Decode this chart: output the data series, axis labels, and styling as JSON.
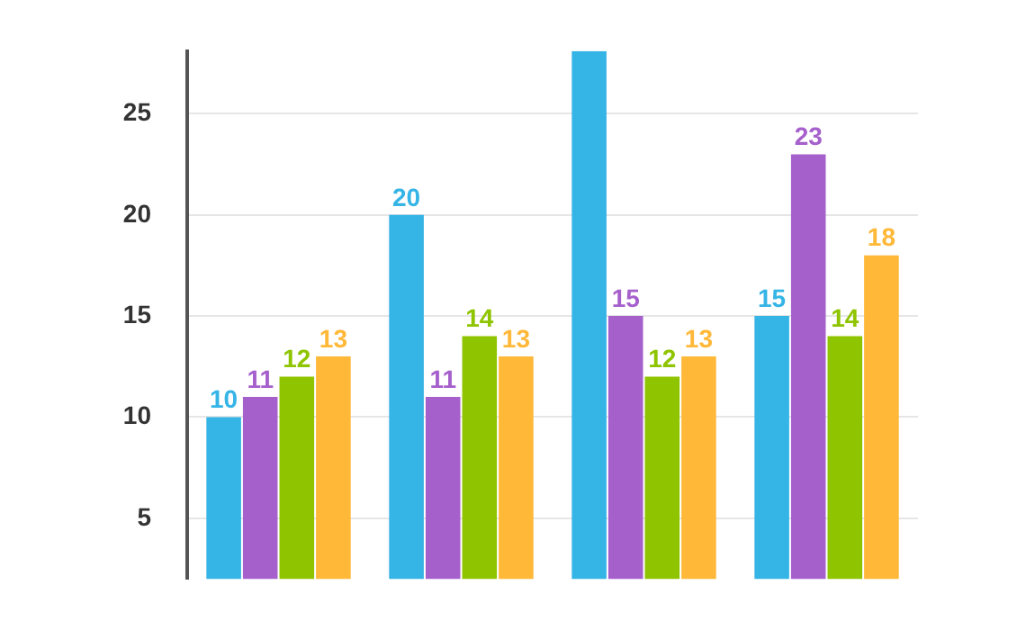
{
  "chart_data": {
    "type": "bar",
    "categories": [
      null,
      null,
      null,
      null
    ],
    "series": [
      {
        "color": "#35b4e6",
        "values": [
          10,
          20,
          28.1,
          15
        ],
        "value_labels": [
          "10",
          "20",
          null,
          "15"
        ]
      },
      {
        "color": "#a660cc",
        "values": [
          11,
          11,
          15,
          23
        ],
        "value_labels": [
          "11",
          "11",
          "15",
          "23"
        ]
      },
      {
        "color": "#8fc400",
        "values": [
          12,
          14,
          12,
          14
        ],
        "value_labels": [
          "12",
          "14",
          "12",
          "14"
        ]
      },
      {
        "color": "#ffb838",
        "values": [
          13,
          13,
          13,
          18
        ],
        "value_labels": [
          "13",
          "13",
          "13",
          "18"
        ]
      }
    ],
    "ylim": [
      2,
      28.1
    ],
    "yticks": [
      5,
      10,
      15,
      20,
      25
    ],
    "grid": "y",
    "tick_labels": "y"
  }
}
